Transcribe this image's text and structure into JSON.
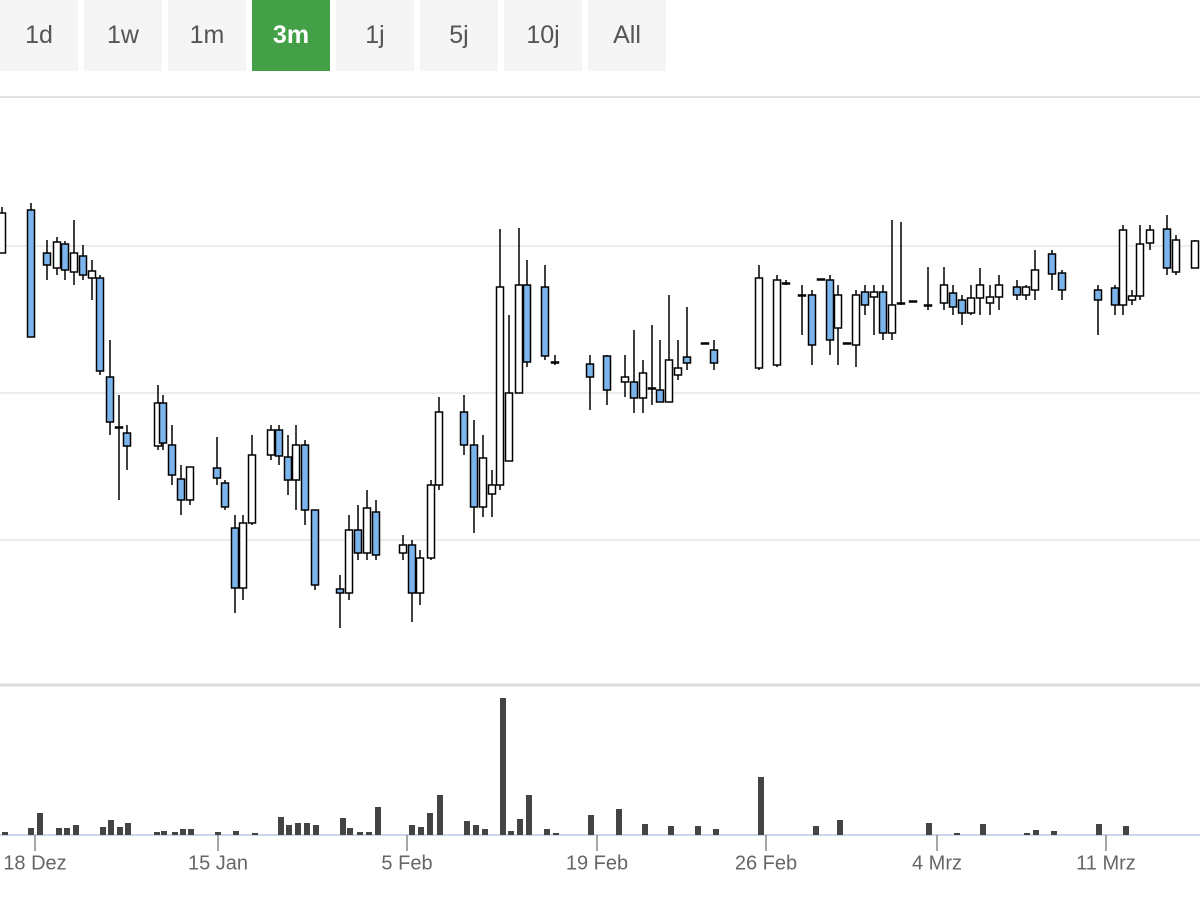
{
  "buttons": [
    "1d",
    "1w",
    "1m",
    "3m",
    "1j",
    "5j",
    "10j",
    "All"
  ],
  "active_button": 3,
  "chart_data": {
    "type": "candlestick",
    "up_color": "#ffffff",
    "down_color": "#7cb5ec",
    "grid": true,
    "xlim": [
      0,
      120
    ],
    "ylim": [
      0,
      588
    ],
    "yticks": [
      145,
      292,
      439
    ],
    "xticks": [
      {
        "value": 3.5,
        "label": "18 Dez"
      },
      {
        "value": 21.8,
        "label": "15 Jan"
      },
      {
        "value": 40.7,
        "label": "5 Feb"
      },
      {
        "value": 59.7,
        "label": "19 Feb"
      },
      {
        "value": 76.6,
        "label": "26 Feb"
      },
      {
        "value": 93.7,
        "label": "4 Mrz"
      },
      {
        "value": 110.6,
        "label": "11 Mrz"
      }
    ],
    "x": [
      0.2,
      3.1,
      4.7,
      5.7,
      6.5,
      7.4,
      8.3,
      9.2,
      10.0,
      11.0,
      11.9,
      12.7,
      15.8,
      16.3,
      17.2,
      18.1,
      19.0,
      21.7,
      22.5,
      23.5,
      24.3,
      25.2,
      27.1,
      27.9,
      28.8,
      29.6,
      30.5,
      31.5,
      34.0,
      34.9,
      35.8,
      36.7,
      37.6,
      40.3,
      41.2,
      42.0,
      43.1,
      43.9,
      46.4,
      47.4,
      48.3,
      49.2,
      50.0,
      50.9,
      51.9,
      52.7,
      54.5,
      55.5,
      59.0,
      60.7,
      62.5,
      63.4,
      64.3,
      65.2,
      66.0,
      66.9,
      67.8,
      68.7,
      70.5,
      71.4,
      75.9,
      77.7,
      78.6,
      80.2,
      81.2,
      82.1,
      83.0,
      83.8,
      84.7,
      85.6,
      86.5,
      87.4,
      88.3,
      89.2,
      90.1,
      91.3,
      92.8,
      94.4,
      95.3,
      96.2,
      97.1,
      98.0,
      99.0,
      99.9,
      101.7,
      102.6,
      103.5,
      105.2,
      106.2,
      109.8,
      111.5,
      112.3,
      113.2,
      114.0,
      115.0,
      116.7,
      117.6,
      119.5
    ],
    "open": [
      432,
      475,
      432,
      417,
      441,
      413,
      429,
      407,
      407,
      308,
      258,
      252,
      239,
      282,
      240,
      206,
      185,
      217,
      202,
      157,
      97,
      162,
      230,
      255,
      228,
      205,
      240,
      175,
      96,
      92,
      155,
      132,
      173,
      132,
      140,
      92,
      127,
      200,
      273,
      240,
      178,
      191,
      200,
      224,
      292,
      400,
      398,
      323,
      321,
      329,
      303,
      303,
      287,
      296,
      295,
      283,
      310,
      328,
      342,
      335,
      317,
      320,
      402,
      390,
      390,
      406,
      405,
      357,
      342,
      340,
      393,
      388,
      393,
      352,
      382,
      384,
      380,
      382,
      392,
      385,
      372,
      387,
      382,
      388,
      398,
      390,
      395,
      431,
      412,
      395,
      397,
      380,
      385,
      389,
      442,
      456,
      413,
      417
    ],
    "high": [
      478,
      482,
      445,
      448,
      444,
      465,
      440,
      425,
      410,
      345,
      290,
      260,
      300,
      290,
      260,
      220,
      218,
      248,
      205,
      170,
      170,
      250,
      260,
      260,
      250,
      260,
      245,
      175,
      110,
      170,
      180,
      195,
      185,
      150,
      145,
      135,
      205,
      288,
      290,
      265,
      250,
      215,
      456,
      370,
      457,
      425,
      420,
      330,
      330,
      330,
      330,
      355,
      325,
      360,
      345,
      390,
      345,
      378,
      342,
      345,
      420,
      410,
      405,
      400,
      395,
      406,
      410,
      400,
      342,
      395,
      400,
      400,
      400,
      465,
      463,
      384,
      418,
      418,
      400,
      390,
      400,
      417,
      400,
      410,
      405,
      400,
      435,
      435,
      415,
      400,
      400,
      460,
      395,
      460,
      460,
      470,
      450,
      445
    ],
    "low": [
      432,
      348,
      405,
      410,
      405,
      400,
      405,
      385,
      310,
      250,
      185,
      215,
      235,
      235,
      200,
      170,
      180,
      200,
      175,
      72,
      85,
      160,
      225,
      220,
      190,
      175,
      160,
      95,
      57,
      85,
      125,
      125,
      125,
      125,
      63,
      80,
      125,
      195,
      230,
      152,
      168,
      168,
      195,
      224,
      292,
      318,
      325,
      320,
      275,
      280,
      288,
      272,
      272,
      280,
      283,
      283,
      305,
      315,
      342,
      315,
      315,
      318,
      400,
      350,
      320,
      406,
      330,
      320,
      342,
      318,
      370,
      350,
      345,
      345,
      380,
      384,
      375,
      375,
      370,
      360,
      370,
      370,
      370,
      375,
      385,
      385,
      385,
      395,
      385,
      350,
      370,
      370,
      380,
      385,
      435,
      410,
      410,
      417
    ],
    "close": [
      472,
      348,
      420,
      443,
      415,
      432,
      410,
      414,
      314,
      263,
      257,
      239,
      282,
      242,
      210,
      185,
      218,
      207,
      178,
      97,
      162,
      230,
      255,
      229,
      205,
      240,
      175,
      100,
      92,
      155,
      132,
      177,
      130,
      140,
      92,
      127,
      200,
      273,
      240,
      178,
      227,
      200,
      398,
      292,
      400,
      323,
      329,
      322,
      308,
      295,
      308,
      287,
      312,
      297,
      283,
      325,
      317,
      322,
      342,
      322,
      407,
      405,
      402,
      389,
      340,
      406,
      345,
      390,
      342,
      390,
      380,
      393,
      352,
      380,
      382,
      384,
      380,
      400,
      378,
      372,
      387,
      400,
      388,
      400,
      390,
      398,
      415,
      411,
      395,
      385,
      380,
      455,
      389,
      441,
      455,
      417,
      445,
      444
    ],
    "volume": {
      "color": "#444444",
      "ylim": [
        0,
        150
      ],
      "x": [
        0.5,
        3.1,
        4.0,
        5.9,
        6.7,
        7.6,
        10.3,
        11.1,
        12.0,
        12.8,
        15.7,
        16.4,
        17.5,
        18.3,
        19.1,
        21.8,
        23.6,
        25.5,
        28.1,
        28.9,
        29.8,
        30.7,
        31.6,
        34.3,
        35.0,
        36.0,
        36.9,
        37.8,
        41.2,
        42.1,
        43.0,
        44.0,
        46.7,
        47.6,
        48.5,
        50.3,
        51.1,
        52.0,
        52.9,
        54.7,
        55.6,
        59.1,
        61.9,
        64.5,
        67.1,
        69.8,
        71.6,
        76.1,
        81.6,
        84.0,
        92.9,
        95.7,
        98.3,
        102.7,
        103.6,
        105.4,
        109.9,
        112.6
      ],
      "values": [
        3,
        7,
        22,
        7,
        7,
        10,
        8,
        15,
        8,
        12,
        3,
        4,
        3,
        6,
        6,
        3,
        4,
        2,
        18,
        10,
        12,
        12,
        10,
        17,
        7,
        3,
        3,
        28,
        10,
        8,
        22,
        40,
        14,
        10,
        6,
        137,
        4,
        16,
        40,
        6,
        2,
        20,
        26,
        11,
        9,
        9,
        6,
        58,
        9,
        15,
        12,
        2,
        11,
        2,
        5,
        4,
        11,
        9
      ]
    }
  }
}
